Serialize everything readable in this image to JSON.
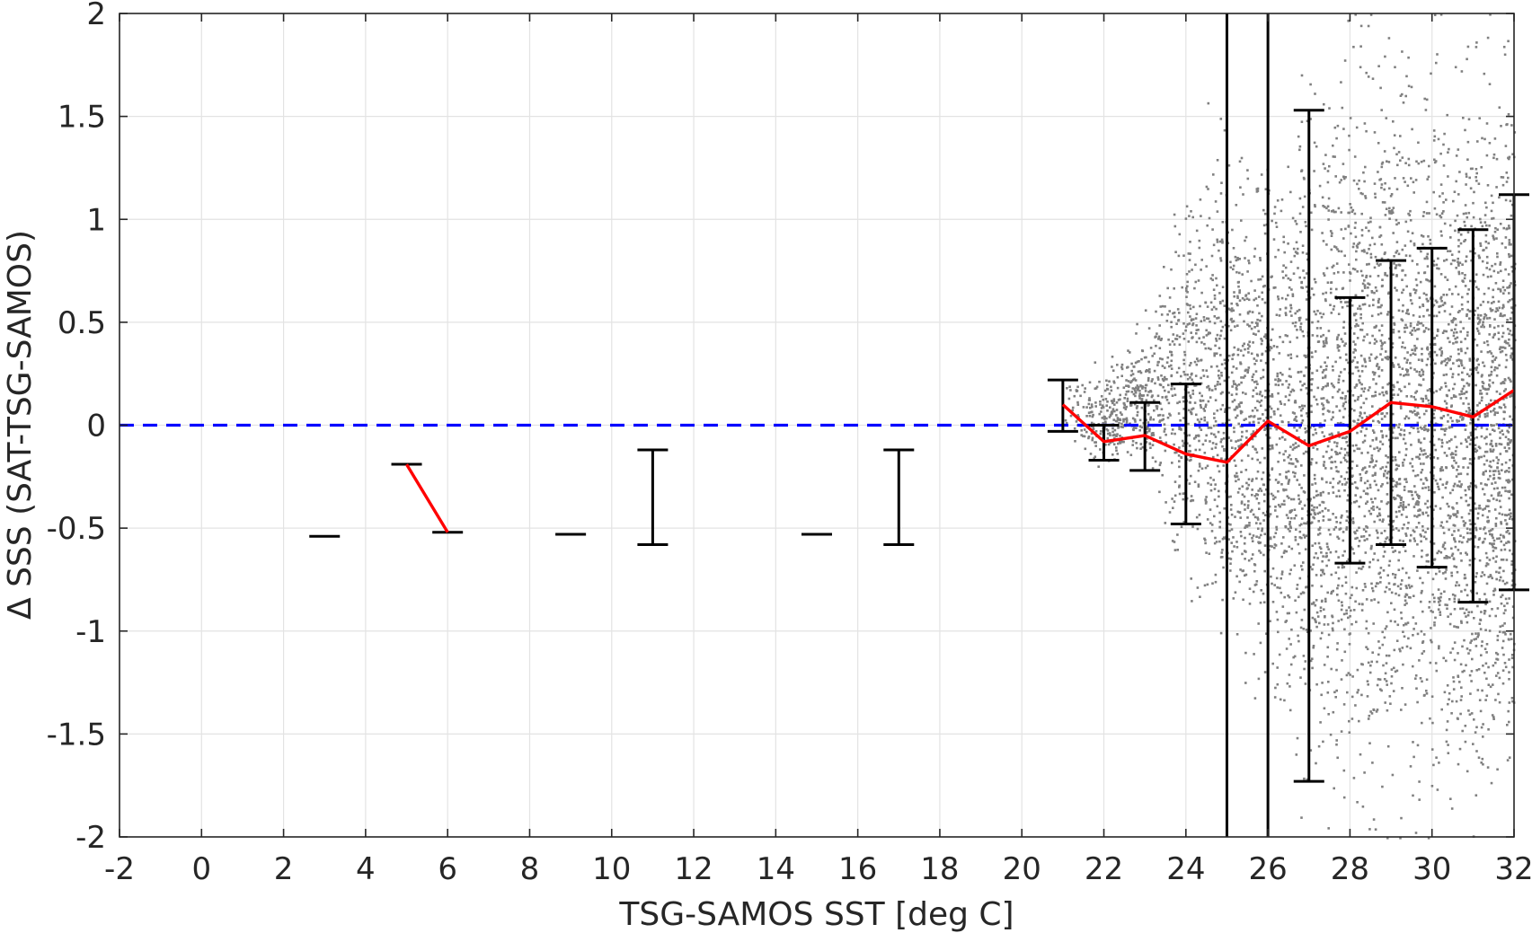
{
  "chart_data": {
    "type": "scatter",
    "title": "",
    "xlabel": "TSG-SAMOS SST [deg C]",
    "ylabel": "Δ SSS (SAT-TSG-SAMOS)",
    "xlim": [
      -2,
      32
    ],
    "ylim": [
      -2,
      2
    ],
    "x_ticks": [
      -2,
      0,
      2,
      4,
      6,
      8,
      10,
      12,
      14,
      16,
      18,
      20,
      22,
      24,
      26,
      28,
      30,
      32
    ],
    "y_ticks": [
      -2,
      -1.5,
      -1,
      -0.5,
      0,
      0.5,
      1,
      1.5,
      2
    ],
    "x_tick_labels": [
      "-2",
      "0",
      "2",
      "4",
      "6",
      "8",
      "10",
      "12",
      "14",
      "16",
      "18",
      "20",
      "22",
      "24",
      "26",
      "28",
      "30",
      "32"
    ],
    "y_tick_labels": [
      "-2",
      "-1.5",
      "-1",
      "-0.5",
      "0",
      "0.5",
      "1",
      "1.5",
      "2"
    ],
    "grid": true,
    "colors": {
      "scatter": "#808080",
      "mean_line": "#ff0000",
      "zero_line": "#0000ff",
      "error_bars": "#000000"
    },
    "zero_line": {
      "y": 0,
      "style": "dashed"
    },
    "mean_line_segments": [
      [
        {
          "x": 5,
          "y": -0.19
        },
        {
          "x": 6,
          "y": -0.52
        }
      ],
      [
        {
          "x": 21,
          "y": 0.1
        },
        {
          "x": 22,
          "y": -0.08
        },
        {
          "x": 23,
          "y": -0.05
        },
        {
          "x": 24,
          "y": -0.14
        },
        {
          "x": 25,
          "y": -0.18
        },
        {
          "x": 26,
          "y": 0.02
        },
        {
          "x": 27,
          "y": -0.1
        },
        {
          "x": 28,
          "y": -0.03
        },
        {
          "x": 29,
          "y": 0.11
        },
        {
          "x": 30,
          "y": 0.09
        },
        {
          "x": 31,
          "y": 0.04
        },
        {
          "x": 32,
          "y": 0.17
        }
      ]
    ],
    "error_bars": [
      {
        "x": 3,
        "low": -0.54,
        "high": -0.54
      },
      {
        "x": 5,
        "low": -0.19,
        "high": -0.19
      },
      {
        "x": 6,
        "low": -0.52,
        "high": -0.52
      },
      {
        "x": 9,
        "low": -0.53,
        "high": -0.53
      },
      {
        "x": 11,
        "low": -0.58,
        "high": -0.12
      },
      {
        "x": 15,
        "low": -0.53,
        "high": -0.53
      },
      {
        "x": 17,
        "low": -0.58,
        "high": -0.12
      },
      {
        "x": 21,
        "low": -0.03,
        "high": 0.22
      },
      {
        "x": 22,
        "low": -0.17,
        "high": 0.0
      },
      {
        "x": 23,
        "low": -0.22,
        "high": 0.11
      },
      {
        "x": 24,
        "low": -0.48,
        "high": 0.2
      },
      {
        "x": 25,
        "low": -2.0,
        "high": 2.0
      },
      {
        "x": 26,
        "low": -2.0,
        "high": 2.0
      },
      {
        "x": 27,
        "low": -1.73,
        "high": 1.53
      },
      {
        "x": 28,
        "low": -0.67,
        "high": 0.62
      },
      {
        "x": 29,
        "low": -0.58,
        "high": 0.8
      },
      {
        "x": 30,
        "low": -0.69,
        "high": 0.86
      },
      {
        "x": 31,
        "low": -0.86,
        "high": 0.95
      },
      {
        "x": 32,
        "low": -0.8,
        "high": 1.12
      }
    ],
    "scatter_envelope": [
      {
        "x": 21.0,
        "low": -0.12,
        "high": 0.28
      },
      {
        "x": 22.0,
        "low": -0.22,
        "high": 0.32
      },
      {
        "x": 23.0,
        "low": -0.3,
        "high": 0.55
      },
      {
        "x": 24.0,
        "low": -0.9,
        "high": 1.3
      },
      {
        "x": 25.0,
        "low": -1.3,
        "high": 1.55
      },
      {
        "x": 26.0,
        "low": -1.5,
        "high": 1.35
      },
      {
        "x": 27.0,
        "low": -1.85,
        "high": 1.8
      },
      {
        "x": 28.0,
        "low": -1.95,
        "high": 2.0
      },
      {
        "x": 29.0,
        "low": -2.0,
        "high": 2.0
      },
      {
        "x": 30.0,
        "low": -2.0,
        "high": 2.0
      },
      {
        "x": 31.0,
        "low": -2.0,
        "high": 2.0
      },
      {
        "x": 32.0,
        "low": -2.0,
        "high": 2.0
      }
    ]
  }
}
